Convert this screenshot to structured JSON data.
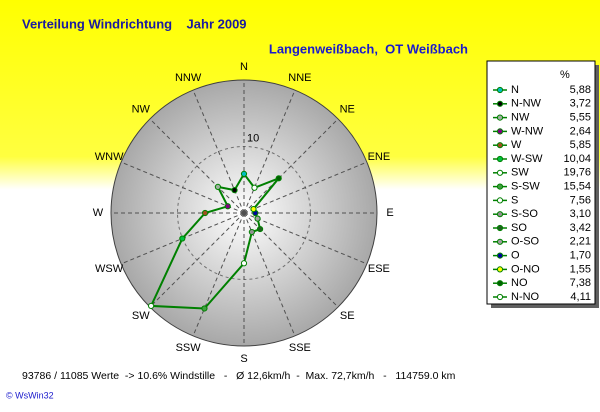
{
  "chart_data": {
    "type": "radar",
    "title": "Verteilung Windrichtung    Jahr 2009",
    "subtitle": "Langenweißbach,  OT Weißbach",
    "direction": "counterclockwise",
    "categories": [
      "N",
      "NNW",
      "NW",
      "WNW",
      "W",
      "WSW",
      "SW",
      "SSW",
      "S",
      "SSE",
      "SE",
      "ESE",
      "E",
      "ENE",
      "NE",
      "NNE"
    ],
    "legend_header": "%",
    "legend_names": [
      "N",
      "N-NW",
      "NW",
      "W-NW",
      "W",
      "W-SW",
      "SW",
      "S-SW",
      "S",
      "S-SO",
      "SO",
      "O-SO",
      "O",
      "O-NO",
      "NO",
      "N-NO"
    ],
    "values": [
      5.88,
      3.72,
      5.55,
      2.64,
      5.85,
      10.04,
      19.76,
      15.54,
      7.56,
      3.1,
      3.42,
      2.21,
      1.7,
      1.55,
      7.38,
      4.11
    ],
    "value_labels": [
      "5,88",
      "3,72",
      "5,55",
      "2,64",
      "5,85",
      "10,04",
      "19,76",
      "15,54",
      "7,56",
      "3,10",
      "3,42",
      "2,21",
      "1,70",
      "1,55",
      "7,38",
      "4,11"
    ],
    "colors": [
      "#00c0c0",
      "#000000",
      "#a0b0a0",
      "#800080",
      "#a05020",
      "#00c040",
      "#ffffff",
      "#40a040",
      "#ffffff",
      "#909090",
      "#206020",
      "#a0a0a0",
      "#0000a0",
      "#ffff00",
      "#006000",
      "#ffffff"
    ],
    "line_color": "#008000",
    "rlim": [
      0,
      20
    ],
    "rticks": [
      10
    ],
    "footer": "93786 / 11085 Werte  -> 10.6% Windstille   -   Ø 12,6km/h  -  Max. 72,7km/h   -   114759.0 km",
    "copyright": "© WsWin32"
  }
}
